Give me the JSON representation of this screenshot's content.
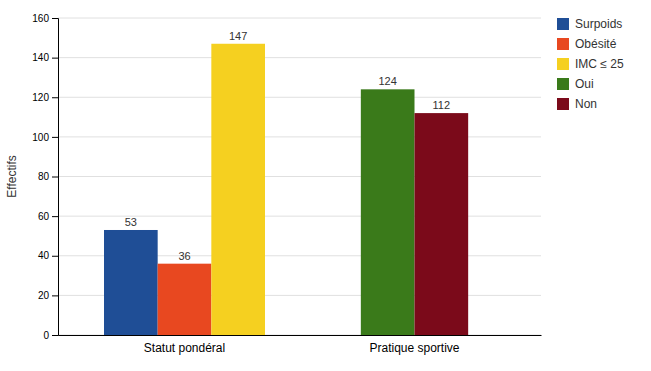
{
  "chart_data": {
    "type": "bar",
    "y_label": "Effectifs",
    "categories": [
      "Statut pondéral",
      "Pratique sportive"
    ],
    "series": [
      {
        "name": "Surpoids",
        "color": "#1F4E96",
        "values": [
          53,
          null
        ]
      },
      {
        "name": "Obésité",
        "color": "#E84820",
        "values": [
          36,
          null
        ]
      },
      {
        "name": "IMC ≤ 25",
        "color": "#F5D020",
        "values": [
          147,
          null
        ]
      },
      {
        "name": "Oui",
        "color": "#3A7A1A",
        "values": [
          null,
          124
        ]
      },
      {
        "name": "Non",
        "color": "#7B0A1A",
        "values": [
          null,
          112
        ]
      }
    ],
    "ylim": [
      0,
      160
    ],
    "yticks": [
      0,
      20,
      40,
      60,
      80,
      100,
      120,
      140,
      160
    ],
    "grid": true,
    "legend": "upper right",
    "data_labels": true
  }
}
